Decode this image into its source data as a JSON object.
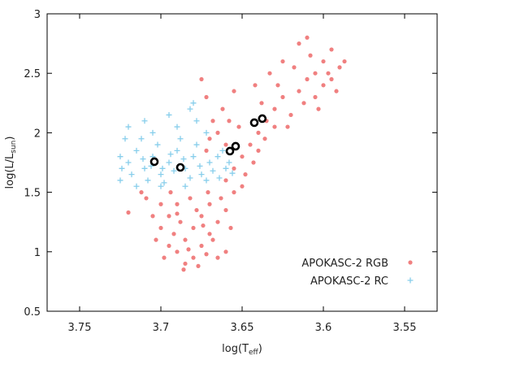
{
  "chart_data": {
    "type": "scatter",
    "x_label": "log(T",
    "x_label_sub": "eff",
    "x_label_end": ")",
    "y_label": "log(L/L",
    "y_label_sub": "sun",
    "y_label_end": ")",
    "xlim": [
      3.77,
      3.53
    ],
    "xticks": [
      3.75,
      3.7,
      3.65,
      3.6,
      3.55
    ],
    "ylim": [
      0.5,
      3
    ],
    "yticks": [
      0.5,
      1,
      1.5,
      2,
      2.5,
      3
    ],
    "legend": "lower right",
    "series": [
      {
        "name": "APOKASC-2 RGB",
        "color": "#f08080",
        "marker": "dot",
        "x": [
          3.69,
          3.685,
          3.68,
          3.675,
          3.67,
          3.695,
          3.69,
          3.68,
          3.685,
          3.675,
          3.67,
          3.665,
          3.66,
          3.7,
          3.695,
          3.688,
          3.678,
          3.672,
          3.682,
          3.692,
          3.668,
          3.66,
          3.698,
          3.703,
          3.705,
          3.663,
          3.686,
          3.677,
          3.671,
          3.694,
          3.7,
          3.657,
          3.665,
          3.683,
          3.674,
          3.69,
          3.709,
          3.712,
          3.72,
          3.655,
          3.66,
          3.655,
          3.65,
          3.66,
          3.665,
          3.67,
          3.648,
          3.652,
          3.645,
          3.64,
          3.658,
          3.662,
          3.668,
          3.672,
          3.65,
          3.643,
          3.636,
          3.672,
          3.675,
          3.655,
          3.635,
          3.63,
          3.625,
          3.62,
          3.615,
          3.61,
          3.605,
          3.6,
          3.595,
          3.59,
          3.63,
          3.628,
          3.618,
          3.612,
          3.608,
          3.6,
          3.597,
          3.605,
          3.622,
          3.638,
          3.642,
          3.615,
          3.61,
          3.595,
          3.603,
          3.625,
          3.633,
          3.587,
          3.592,
          3.64
        ],
        "values": [
          1.0,
          1.1,
          1.2,
          1.05,
          1.15,
          1.3,
          1.4,
          0.95,
          0.9,
          1.3,
          1.4,
          1.25,
          1.35,
          1.2,
          1.05,
          1.25,
          1.35,
          0.98,
          1.45,
          1.15,
          1.1,
          1.0,
          0.95,
          1.1,
          1.3,
          1.45,
          0.85,
          0.88,
          1.5,
          1.5,
          1.4,
          1.2,
          0.95,
          1.02,
          1.22,
          1.32,
          1.45,
          1.5,
          1.33,
          1.5,
          1.6,
          1.7,
          1.8,
          1.9,
          2.0,
          1.95,
          1.65,
          2.05,
          1.9,
          2.0,
          2.1,
          2.2,
          2.1,
          1.85,
          1.55,
          1.75,
          1.95,
          2.3,
          2.45,
          2.35,
          2.1,
          2.2,
          2.3,
          2.15,
          2.35,
          2.45,
          2.5,
          2.6,
          2.7,
          2.55,
          2.05,
          2.4,
          2.55,
          2.25,
          2.65,
          2.4,
          2.5,
          2.3,
          2.05,
          2.25,
          2.4,
          2.75,
          2.8,
          2.45,
          2.2,
          2.6,
          2.5,
          2.6,
          2.35,
          1.85
        ]
      },
      {
        "name": "APOKASC-2 RC",
        "color": "#87ceeb",
        "marker": "plus",
        "x": [
          3.72,
          3.715,
          3.71,
          3.705,
          3.7,
          3.695,
          3.69,
          3.685,
          3.68,
          3.675,
          3.67,
          3.665,
          3.66,
          3.718,
          3.712,
          3.708,
          3.702,
          3.698,
          3.692,
          3.688,
          3.682,
          3.678,
          3.672,
          3.668,
          3.662,
          3.658,
          3.722,
          3.725,
          3.725,
          3.72,
          3.71,
          3.705,
          3.695,
          3.69,
          3.682,
          3.678,
          3.672,
          3.7,
          3.715,
          3.685,
          3.706,
          3.694,
          3.676,
          3.664,
          3.656,
          3.686,
          3.711,
          3.699,
          3.724,
          3.68
        ],
        "values": [
          1.75,
          1.85,
          1.7,
          1.8,
          1.65,
          1.75,
          1.85,
          1.7,
          1.8,
          1.65,
          1.75,
          1.8,
          1.7,
          1.65,
          1.95,
          1.6,
          1.9,
          1.58,
          1.68,
          1.95,
          1.62,
          1.9,
          1.6,
          1.68,
          1.85,
          1.75,
          1.95,
          1.8,
          1.6,
          2.05,
          2.1,
          2.0,
          2.15,
          2.05,
          2.2,
          2.1,
          2.0,
          1.55,
          1.55,
          1.55,
          1.72,
          1.82,
          1.72,
          1.62,
          1.66,
          1.78,
          1.78,
          1.7,
          1.7,
          2.25
        ]
      },
      {
        "color": "#000000",
        "marker": "ring",
        "x": [
          3.704,
          3.688,
          3.6575,
          3.654,
          3.6425,
          3.6376
        ],
        "values": [
          1.757,
          1.709,
          1.846,
          1.887,
          2.085,
          2.119
        ]
      }
    ]
  }
}
